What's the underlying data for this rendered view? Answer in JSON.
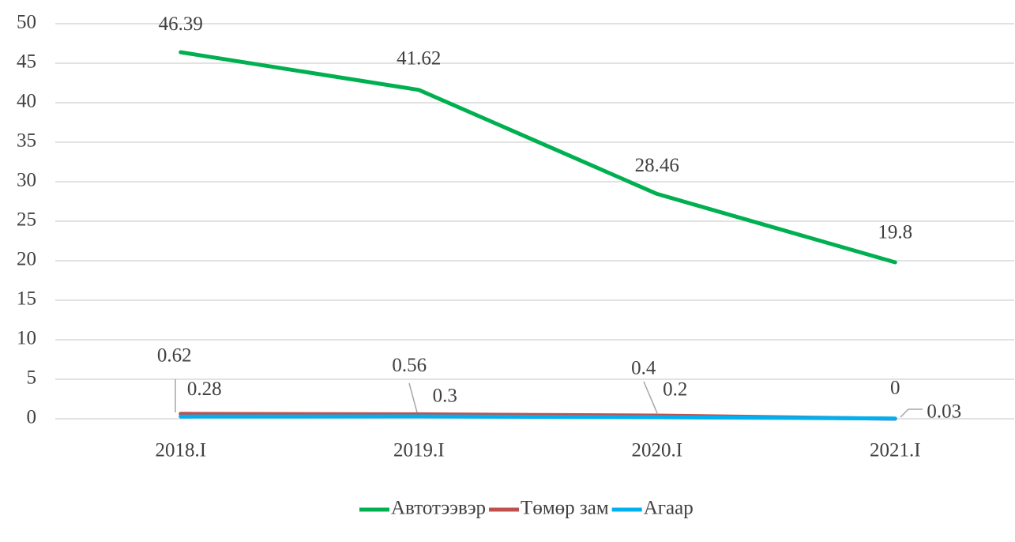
{
  "chart_data": {
    "type": "line",
    "categories": [
      "2018.I",
      "2019.I",
      "2020.I",
      "2021.I"
    ],
    "series": [
      {
        "name": "Автотээвэр",
        "color": "#00b050",
        "values": [
          46.39,
          41.62,
          28.46,
          19.8
        ]
      },
      {
        "name": "Төмөр зам",
        "color": "#c0504d",
        "values": [
          0.62,
          0.56,
          0.4,
          0
        ]
      },
      {
        "name": "Агаар",
        "color": "#00b0f0",
        "values": [
          0.28,
          0.3,
          0.2,
          0.03
        ]
      }
    ],
    "ylim": [
      0,
      50
    ],
    "yticks": [
      0,
      5,
      10,
      15,
      20,
      25,
      30,
      35,
      40,
      45,
      50
    ],
    "grid": true,
    "legend": "bottom"
  }
}
